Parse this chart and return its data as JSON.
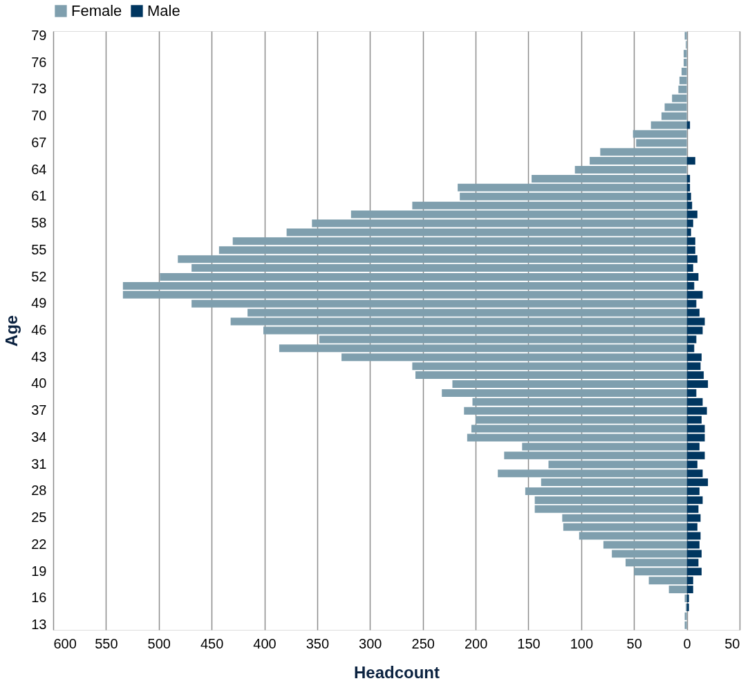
{
  "chart_data": {
    "type": "bar",
    "orientation": "horizontal",
    "stacked": true,
    "xlabel": "Headcount",
    "ylabel": "Age",
    "categories": [
      "79",
      null,
      null,
      "76",
      null,
      null,
      "73",
      null,
      null,
      "70",
      null,
      null,
      "67",
      null,
      null,
      "64",
      null,
      null,
      "61",
      null,
      null,
      "58",
      null,
      null,
      "55",
      null,
      null,
      "52",
      null,
      null,
      "49",
      null,
      null,
      "46",
      null,
      null,
      "43",
      null,
      null,
      "40",
      null,
      null,
      "37",
      null,
      null,
      "34",
      null,
      null,
      "31",
      null,
      null,
      "28",
      null,
      null,
      "25",
      null,
      null,
      "22",
      null,
      null,
      "19",
      null,
      null,
      "16",
      null,
      null,
      "13"
    ],
    "series": [
      {
        "name": "Female",
        "color": "#7f9fae",
        "values": [
          -2,
          -1,
          -3,
          -3,
          -5,
          -7,
          -8,
          -14,
          -21,
          -24,
          -34,
          -51,
          -48,
          -82,
          -92,
          -106,
          -147,
          -217,
          -215,
          -260,
          -318,
          -355,
          -379,
          -430,
          -443,
          -482,
          -469,
          -499,
          -534,
          -534,
          -469,
          -416,
          -432,
          -401,
          -348,
          -386,
          -327,
          -260,
          -257,
          -222,
          -232,
          -203,
          -211,
          -200,
          -204,
          -208,
          -156,
          -173,
          -131,
          -179,
          -138,
          -153,
          -144,
          -144,
          -118,
          -117,
          -102,
          -79,
          -71,
          -58,
          -50,
          -36,
          -17,
          -2,
          -1,
          -2,
          -2
        ]
      },
      {
        "name": "Male",
        "color": "#003660",
        "values": [
          null,
          null,
          null,
          null,
          null,
          null,
          null,
          null,
          null,
          null,
          3,
          null,
          null,
          null,
          8,
          null,
          3,
          3,
          4,
          5,
          10,
          6,
          4,
          8,
          8,
          10,
          6,
          11,
          7,
          15,
          9,
          12,
          17,
          15,
          9,
          7,
          14,
          13,
          16,
          20,
          9,
          15,
          19,
          14,
          17,
          17,
          12,
          17,
          10,
          15,
          20,
          12,
          15,
          11,
          13,
          10,
          13,
          12,
          14,
          11,
          14,
          6,
          6,
          2,
          2,
          null,
          null
        ]
      }
    ],
    "xlim": [
      -600,
      50
    ],
    "xticks": [
      {
        "value": -600,
        "label": "600"
      },
      {
        "value": -550,
        "label": "550"
      },
      {
        "value": -500,
        "label": "500"
      },
      {
        "value": -450,
        "label": "450"
      },
      {
        "value": -400,
        "label": "400"
      },
      {
        "value": -350,
        "label": "350"
      },
      {
        "value": -300,
        "label": "300"
      },
      {
        "value": -250,
        "label": "250"
      },
      {
        "value": -200,
        "label": "200"
      },
      {
        "value": -150,
        "label": "150"
      },
      {
        "value": -100,
        "label": "100"
      },
      {
        "value": -50,
        "label": "50"
      },
      0,
      50
    ],
    "grid": "x",
    "legend": "top"
  }
}
